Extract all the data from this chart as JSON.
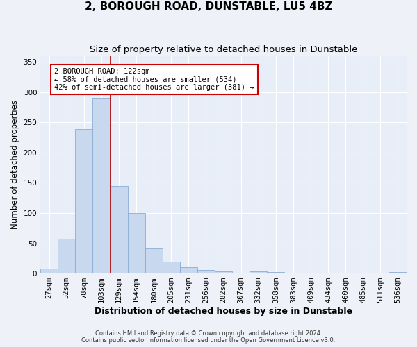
{
  "title": "2, BOROUGH ROAD, DUNSTABLE, LU5 4BZ",
  "subtitle": "Size of property relative to detached houses in Dunstable",
  "xlabel": "Distribution of detached houses by size in Dunstable",
  "ylabel": "Number of detached properties",
  "footer_line1": "Contains HM Land Registry data © Crown copyright and database right 2024.",
  "footer_line2": "Contains public sector information licensed under the Open Government Licence v3.0.",
  "bar_labels": [
    "27sqm",
    "52sqm",
    "78sqm",
    "103sqm",
    "129sqm",
    "154sqm",
    "180sqm",
    "205sqm",
    "231sqm",
    "256sqm",
    "282sqm",
    "307sqm",
    "332sqm",
    "358sqm",
    "383sqm",
    "409sqm",
    "434sqm",
    "460sqm",
    "485sqm",
    "511sqm",
    "536sqm"
  ],
  "bar_values": [
    8,
    57,
    239,
    291,
    145,
    100,
    41,
    20,
    10,
    6,
    4,
    0,
    4,
    2,
    0,
    0,
    0,
    0,
    0,
    0,
    2
  ],
  "bar_color": "#c8d8ef",
  "bar_edge_color": "#8aadd4",
  "bar_width": 1.0,
  "vline_color": "#aa0000",
  "vline_x_idx": 4,
  "annotation_text": "2 BOROUGH ROAD: 122sqm\n← 58% of detached houses are smaller (534)\n42% of semi-detached houses are larger (381) →",
  "annotation_box_color": "#ffffff",
  "annotation_box_edge": "#cc0000",
  "ylim": [
    0,
    360
  ],
  "yticks": [
    0,
    50,
    100,
    150,
    200,
    250,
    300,
    350
  ],
  "background_color": "#e8eef8",
  "fig_background": "#eef2f8",
  "grid_color": "#ffffff",
  "title_fontsize": 11,
  "subtitle_fontsize": 9.5,
  "ylabel_fontsize": 8.5,
  "xlabel_fontsize": 9,
  "tick_fontsize": 7.5,
  "ann_fontsize": 7.5
}
